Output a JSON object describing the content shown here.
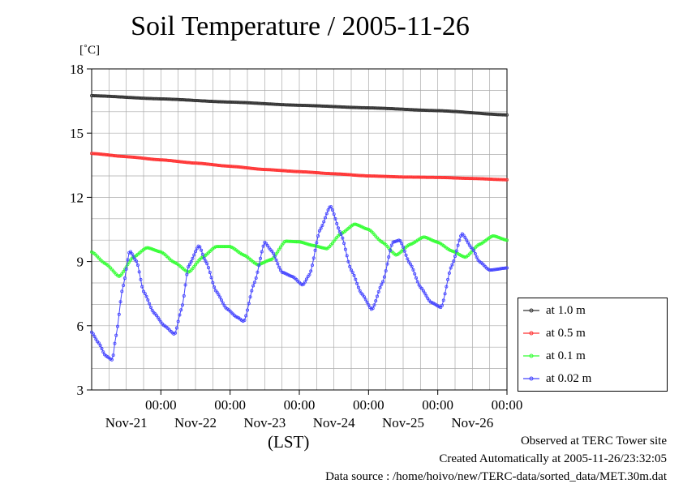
{
  "page": {
    "title": "Soil Temperature / 2005-11-26",
    "unit": "[˚C]",
    "xaxis_label": "(LST)",
    "footer": {
      "line1": "Observed at TERC Tower site",
      "line2": "Created Automatically at 2005-11-26/23:32:05",
      "line3": "Data source : /home/hoivo/new/TERC-data/sorted_data/MET.30m.dat"
    }
  },
  "chart_data": {
    "type": "line",
    "title": "Soil Temperature / 2005-11-26",
    "ylabel": "[˚C]",
    "xlabel": "(LST)",
    "ylim": [
      3,
      18
    ],
    "yticks": [
      3,
      6,
      9,
      12,
      15,
      18
    ],
    "xlim_days": [
      20.0,
      26.0
    ],
    "x_ticks": [
      {
        "day": 21,
        "time": "00:00",
        "date": "Nov-21"
      },
      {
        "day": 22,
        "time": "00:00",
        "date": "Nov-22"
      },
      {
        "day": 23,
        "time": "00:00",
        "date": "Nov-23"
      },
      {
        "day": 24,
        "time": "00:00",
        "date": "Nov-24"
      },
      {
        "day": 25,
        "time": "00:00",
        "date": "Nov-25"
      },
      {
        "day": 26,
        "time": "00:00",
        "date": "Nov-26"
      }
    ],
    "grid": true,
    "legend_position": "right",
    "series": [
      {
        "name": "at 1.0 m",
        "color": "#333333",
        "points": [
          [
            20.0,
            16.75
          ],
          [
            21.0,
            16.6
          ],
          [
            22.0,
            16.45
          ],
          [
            23.0,
            16.3
          ],
          [
            24.0,
            16.18
          ],
          [
            25.0,
            16.05
          ],
          [
            26.0,
            15.85
          ]
        ]
      },
      {
        "name": "at 0.5 m",
        "color": "#ff3333",
        "points": [
          [
            20.0,
            14.05
          ],
          [
            20.5,
            13.9
          ],
          [
            21.0,
            13.75
          ],
          [
            21.5,
            13.6
          ],
          [
            22.0,
            13.45
          ],
          [
            22.5,
            13.3
          ],
          [
            23.0,
            13.2
          ],
          [
            23.5,
            13.1
          ],
          [
            24.0,
            13.0
          ],
          [
            24.5,
            12.95
          ],
          [
            25.0,
            12.93
          ],
          [
            25.5,
            12.88
          ],
          [
            26.0,
            12.82
          ]
        ]
      },
      {
        "name": "at 0.1 m",
        "color": "#33ff33",
        "points": [
          [
            20.0,
            9.45
          ],
          [
            20.2,
            8.9
          ],
          [
            20.4,
            8.3
          ],
          [
            20.6,
            9.2
          ],
          [
            20.8,
            9.65
          ],
          [
            21.0,
            9.45
          ],
          [
            21.2,
            8.95
          ],
          [
            21.4,
            8.5
          ],
          [
            21.6,
            9.2
          ],
          [
            21.8,
            9.7
          ],
          [
            22.0,
            9.7
          ],
          [
            22.2,
            9.3
          ],
          [
            22.4,
            8.85
          ],
          [
            22.6,
            9.1
          ],
          [
            22.8,
            9.95
          ],
          [
            23.0,
            9.92
          ],
          [
            23.2,
            9.75
          ],
          [
            23.4,
            9.6
          ],
          [
            23.6,
            10.3
          ],
          [
            23.8,
            10.75
          ],
          [
            24.0,
            10.5
          ],
          [
            24.2,
            9.9
          ],
          [
            24.4,
            9.3
          ],
          [
            24.6,
            9.8
          ],
          [
            24.8,
            10.15
          ],
          [
            25.0,
            9.9
          ],
          [
            25.2,
            9.5
          ],
          [
            25.4,
            9.2
          ],
          [
            25.6,
            9.8
          ],
          [
            25.8,
            10.2
          ],
          [
            26.0,
            10.0
          ]
        ]
      },
      {
        "name": "at 0.02 m",
        "color": "#4444ff",
        "points": [
          [
            20.0,
            5.7
          ],
          [
            20.1,
            5.2
          ],
          [
            20.2,
            4.6
          ],
          [
            20.3,
            4.4
          ],
          [
            20.35,
            5.5
          ],
          [
            20.45,
            7.8
          ],
          [
            20.55,
            9.5
          ],
          [
            20.65,
            9.0
          ],
          [
            20.75,
            7.6
          ],
          [
            20.9,
            6.6
          ],
          [
            21.05,
            6.0
          ],
          [
            21.2,
            5.6
          ],
          [
            21.3,
            6.8
          ],
          [
            21.4,
            8.8
          ],
          [
            21.55,
            9.75
          ],
          [
            21.65,
            9.0
          ],
          [
            21.8,
            7.6
          ],
          [
            21.95,
            6.8
          ],
          [
            22.1,
            6.4
          ],
          [
            22.2,
            6.2
          ],
          [
            22.35,
            8.0
          ],
          [
            22.5,
            9.9
          ],
          [
            22.6,
            9.5
          ],
          [
            22.75,
            8.5
          ],
          [
            22.9,
            8.3
          ],
          [
            23.05,
            7.9
          ],
          [
            23.15,
            8.4
          ],
          [
            23.3,
            10.5
          ],
          [
            23.45,
            11.6
          ],
          [
            23.6,
            10.3
          ],
          [
            23.75,
            8.6
          ],
          [
            23.9,
            7.5
          ],
          [
            24.05,
            6.75
          ],
          [
            24.2,
            8.0
          ],
          [
            24.35,
            9.9
          ],
          [
            24.45,
            10.0
          ],
          [
            24.6,
            8.9
          ],
          [
            24.75,
            7.8
          ],
          [
            24.9,
            7.1
          ],
          [
            25.05,
            6.85
          ],
          [
            25.2,
            8.8
          ],
          [
            25.35,
            10.3
          ],
          [
            25.5,
            9.6
          ],
          [
            25.6,
            9.0
          ],
          [
            25.75,
            8.6
          ],
          [
            26.0,
            8.7
          ]
        ]
      }
    ]
  }
}
